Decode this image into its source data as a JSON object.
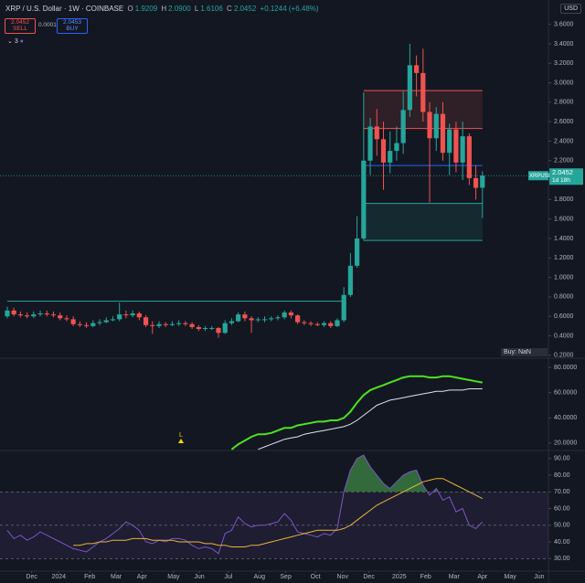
{
  "header": {
    "symbol": "XRP / U.S. Dollar · 1W · COINBASE",
    "ohlc": [
      "O",
      "1.9209",
      "H",
      "2.0900",
      "L",
      "1.6106",
      "C",
      "2.0452",
      "+0.1244 (+6.48%)"
    ],
    "sell_price": "2.0452",
    "sell_label": "SELL",
    "spread": "0.0001",
    "buy_price": "2.0453",
    "buy_label": "BUY",
    "indicator_count": "3",
    "currency": "USD",
    "ticker": "XRPUSD",
    "last_price": "2.0452",
    "countdown": "1d 18h",
    "strategy_note": "Buy: NaN"
  },
  "chart_data": [
    {
      "type": "candlestick",
      "up_color": "#26a69a",
      "down_color": "#ef5350",
      "x": [
        0,
        1,
        2,
        3,
        4,
        5,
        6,
        7,
        8,
        9,
        10,
        11,
        12,
        13,
        14,
        15,
        16,
        17,
        18,
        19,
        20,
        21,
        22,
        23,
        24,
        25,
        26,
        27,
        28,
        29,
        30,
        31,
        32,
        33,
        34,
        35,
        36,
        37,
        38,
        39,
        40,
        41,
        42,
        43,
        44,
        45,
        46,
        47,
        48,
        49,
        50,
        51,
        52,
        53,
        54,
        55,
        56,
        57,
        58,
        59,
        60,
        61,
        62,
        63,
        64,
        65,
        66,
        67,
        68,
        69,
        70,
        71,
        72
      ],
      "open": [
        0.6,
        0.66,
        0.62,
        0.61,
        0.6,
        0.62,
        0.63,
        0.62,
        0.61,
        0.58,
        0.57,
        0.52,
        0.51,
        0.5,
        0.53,
        0.54,
        0.56,
        0.57,
        0.62,
        0.61,
        0.63,
        0.59,
        0.51,
        0.5,
        0.52,
        0.51,
        0.52,
        0.53,
        0.52,
        0.49,
        0.47,
        0.48,
        0.48,
        0.43,
        0.53,
        0.55,
        0.62,
        0.58,
        0.56,
        0.57,
        0.57,
        0.58,
        0.59,
        0.64,
        0.61,
        0.54,
        0.53,
        0.52,
        0.51,
        0.53,
        0.5,
        0.56,
        0.82,
        1.12,
        1.4,
        2.2,
        2.55,
        2.42,
        2.18,
        2.3,
        2.38,
        2.72,
        3.18,
        3.1,
        2.7,
        2.43,
        2.68,
        2.28,
        2.52,
        2.18,
        2.45,
        2.02,
        1.9209
      ],
      "high": [
        0.7,
        0.69,
        0.65,
        0.64,
        0.65,
        0.66,
        0.66,
        0.65,
        0.64,
        0.61,
        0.6,
        0.55,
        0.54,
        0.56,
        0.57,
        0.59,
        0.6,
        0.74,
        0.66,
        0.66,
        0.65,
        0.61,
        0.55,
        0.55,
        0.54,
        0.55,
        0.56,
        0.55,
        0.54,
        0.51,
        0.5,
        0.5,
        0.49,
        0.56,
        0.58,
        0.64,
        0.65,
        0.6,
        0.59,
        0.6,
        0.6,
        0.61,
        0.66,
        0.66,
        0.62,
        0.56,
        0.55,
        0.54,
        0.55,
        0.55,
        0.58,
        0.9,
        1.25,
        1.63,
        2.9,
        2.64,
        2.73,
        2.6,
        2.5,
        2.55,
        2.91,
        3.4,
        3.28,
        3.35,
        2.8,
        2.75,
        2.8,
        2.58,
        2.6,
        2.6,
        2.48,
        2.15,
        2.09
      ],
      "low": [
        0.58,
        0.6,
        0.59,
        0.58,
        0.58,
        0.6,
        0.6,
        0.59,
        0.56,
        0.55,
        0.5,
        0.49,
        0.48,
        0.49,
        0.51,
        0.53,
        0.55,
        0.55,
        0.58,
        0.59,
        0.56,
        0.49,
        0.42,
        0.48,
        0.49,
        0.5,
        0.5,
        0.5,
        0.47,
        0.45,
        0.45,
        0.46,
        0.38,
        0.42,
        0.51,
        0.54,
        0.55,
        0.43,
        0.54,
        0.54,
        0.55,
        0.56,
        0.57,
        0.58,
        0.52,
        0.51,
        0.5,
        0.5,
        0.49,
        0.48,
        0.49,
        0.54,
        0.8,
        1.1,
        1.38,
        2.05,
        2.25,
        1.9,
        2.07,
        2.2,
        2.27,
        2.65,
        2.86,
        2.6,
        1.77,
        2.3,
        2.2,
        2.05,
        2.08,
        2.0,
        1.95,
        1.8,
        1.6106
      ],
      "close": [
        0.66,
        0.62,
        0.61,
        0.6,
        0.62,
        0.63,
        0.62,
        0.61,
        0.58,
        0.57,
        0.52,
        0.51,
        0.5,
        0.53,
        0.54,
        0.56,
        0.57,
        0.62,
        0.61,
        0.63,
        0.59,
        0.51,
        0.5,
        0.52,
        0.51,
        0.52,
        0.53,
        0.52,
        0.49,
        0.47,
        0.48,
        0.48,
        0.43,
        0.53,
        0.55,
        0.62,
        0.58,
        0.56,
        0.57,
        0.57,
        0.58,
        0.59,
        0.64,
        0.61,
        0.54,
        0.53,
        0.52,
        0.51,
        0.53,
        0.5,
        0.56,
        0.82,
        1.12,
        1.4,
        2.2,
        2.55,
        2.42,
        2.18,
        2.3,
        2.38,
        2.72,
        3.18,
        3.1,
        2.7,
        2.43,
        2.68,
        2.28,
        2.52,
        2.18,
        2.45,
        2.02,
        1.92,
        2.0452
      ],
      "zones": [
        {
          "x": [
            54,
            72
          ],
          "y": [
            2.53,
            2.92
          ],
          "color": "rgba(239,83,80,0.13)"
        },
        {
          "x": [
            54,
            72
          ],
          "y": [
            1.38,
            1.76
          ],
          "color": "rgba(38,166,154,0.13)"
        }
      ],
      "hlines": [
        {
          "value": 0.755,
          "x": [
            0,
            51
          ],
          "color": "#26a69a"
        },
        {
          "value": 2.92,
          "x": [
            54,
            72
          ],
          "color": "#ef5350"
        },
        {
          "value": 2.53,
          "x": [
            54,
            72
          ],
          "color": "#ef5350"
        },
        {
          "value": 2.15,
          "x": [
            54,
            72
          ],
          "color": "#2962ff"
        },
        {
          "value": 1.76,
          "x": [
            54,
            72
          ],
          "color": "#26a69a"
        },
        {
          "value": 1.38,
          "x": [
            54,
            72
          ],
          "color": "#26a69a"
        }
      ],
      "xlim": [
        -1.1,
        82
      ],
      "ylim": [
        0.17,
        3.85
      ],
      "grid": false,
      "yticks": [
        {
          "value": 3.6,
          "label": "3.6000"
        },
        {
          "value": 3.4,
          "label": "3.4000"
        },
        {
          "value": 3.2,
          "label": "3.2000"
        },
        {
          "value": 3.0,
          "label": "3.0000"
        },
        {
          "value": 2.8,
          "label": "2.8000"
        },
        {
          "value": 2.6,
          "label": "2.6000"
        },
        {
          "value": 2.4,
          "label": "2.4000"
        },
        {
          "value": 2.2,
          "label": "2.2000"
        },
        {
          "value": 2.0,
          "label": "2.0000"
        },
        {
          "value": 1.8,
          "label": "1.8000"
        },
        {
          "value": 1.6,
          "label": "1.6000"
        },
        {
          "value": 1.4,
          "label": "1.4000"
        },
        {
          "value": 1.2,
          "label": "1.2000"
        },
        {
          "value": 1.0,
          "label": "1.0000"
        },
        {
          "value": 0.8,
          "label": "0.8000"
        },
        {
          "value": 0.6,
          "label": "0.6000"
        },
        {
          "value": 0.4,
          "label": "0.4000"
        },
        {
          "value": 0.2,
          "label": "0.2000"
        }
      ]
    },
    {
      "type": "line",
      "annotation": "L",
      "x": [
        0,
        1,
        2,
        3,
        4,
        5,
        6,
        7,
        8,
        9,
        10,
        11,
        12,
        13,
        14,
        15,
        16,
        17,
        18,
        19,
        20,
        21,
        22,
        23,
        24,
        25,
        26,
        27,
        28,
        29,
        30,
        31,
        32,
        33,
        34,
        35,
        36,
        37,
        38,
        39,
        40,
        41,
        42,
        43,
        44,
        45,
        46,
        47,
        48,
        49,
        50,
        51,
        52,
        53,
        54,
        55,
        56,
        57,
        58,
        59,
        60,
        61,
        62,
        63,
        64,
        65,
        66,
        67,
        68,
        69,
        70,
        71,
        72
      ],
      "series": [
        {
          "color": "#4ce31e",
          "width": 2,
          "values": [
            null,
            null,
            null,
            null,
            null,
            null,
            null,
            null,
            null,
            null,
            null,
            null,
            null,
            null,
            null,
            null,
            null,
            null,
            null,
            null,
            null,
            null,
            null,
            null,
            null,
            null,
            null,
            null,
            null,
            null,
            null,
            null,
            null,
            null,
            15,
            19,
            22,
            25,
            27,
            27,
            28,
            30,
            32,
            32,
            34,
            35,
            36,
            37,
            37,
            38,
            38,
            40,
            45,
            52,
            58,
            62,
            64,
            66,
            68,
            70,
            72,
            73,
            73,
            73,
            72,
            72,
            73,
            73,
            72,
            71,
            70,
            69,
            68
          ]
        },
        {
          "color": "#e0e3eb",
          "width": 1,
          "values": [
            null,
            null,
            null,
            null,
            null,
            null,
            null,
            null,
            null,
            null,
            null,
            null,
            null,
            null,
            null,
            null,
            null,
            null,
            null,
            null,
            null,
            null,
            null,
            null,
            null,
            null,
            null,
            null,
            null,
            null,
            null,
            null,
            null,
            null,
            null,
            null,
            null,
            null,
            15,
            17,
            19,
            21,
            23,
            24,
            25,
            27,
            28,
            29,
            30,
            31,
            32,
            33,
            35,
            38,
            42,
            46,
            50,
            52,
            54,
            55,
            56,
            57,
            58,
            59,
            60,
            61,
            61,
            62,
            62,
            62,
            63,
            63,
            63
          ]
        }
      ],
      "xlim": [
        -1.1,
        82
      ],
      "ylim": [
        14.1,
        87.3
      ],
      "grid": false,
      "yticks": [
        {
          "value": 80,
          "label": "80.0000"
        },
        {
          "value": 60,
          "label": "60.0000"
        },
        {
          "value": 40,
          "label": "40.0000"
        },
        {
          "value": 20,
          "label": "20.0000"
        }
      ]
    },
    {
      "type": "rsi",
      "levels": [
        70,
        50,
        30
      ],
      "band": [
        30,
        70
      ],
      "band_color": "rgba(126,87,194,0.10)",
      "overbought_fill": "rgba(76,175,80,0.55)",
      "x": [
        0,
        1,
        2,
        3,
        4,
        5,
        6,
        7,
        8,
        9,
        10,
        11,
        12,
        13,
        14,
        15,
        16,
        17,
        18,
        19,
        20,
        21,
        22,
        23,
        24,
        25,
        26,
        27,
        28,
        29,
        30,
        31,
        32,
        33,
        34,
        35,
        36,
        37,
        38,
        39,
        40,
        41,
        42,
        43,
        44,
        45,
        46,
        47,
        48,
        49,
        50,
        51,
        52,
        53,
        54,
        55,
        56,
        57,
        58,
        59,
        60,
        61,
        62,
        63,
        64,
        65,
        66,
        67,
        68,
        69,
        70,
        71,
        72
      ],
      "series": [
        {
          "color": "#7e57c2",
          "width": 1,
          "values": [
            47,
            42,
            44,
            41,
            43,
            46,
            44,
            42,
            40,
            38,
            36,
            35,
            34,
            37,
            40,
            42,
            45,
            48,
            52,
            50,
            47,
            40,
            39,
            41,
            40,
            42,
            42,
            41,
            38,
            36,
            37,
            36,
            33,
            45,
            47,
            55,
            51,
            49,
            50,
            50,
            51,
            52,
            57,
            53,
            46,
            45,
            44,
            43,
            45,
            44,
            48,
            70,
            83,
            90,
            92,
            85,
            80,
            75,
            72,
            76,
            80,
            82,
            83,
            74,
            68,
            72,
            65,
            67,
            58,
            60,
            50,
            48,
            52
          ]
        },
        {
          "color": "#e8b53a",
          "width": 1,
          "values": [
            null,
            null,
            null,
            null,
            null,
            null,
            null,
            null,
            null,
            null,
            38,
            38,
            39,
            39,
            40,
            40,
            41,
            41,
            41,
            42,
            42,
            42,
            41,
            41,
            41,
            41,
            40,
            40,
            40,
            40,
            39,
            39,
            38,
            38,
            37,
            37,
            37,
            38,
            38,
            39,
            40,
            41,
            42,
            43,
            44,
            45,
            46,
            47,
            47,
            47,
            47,
            48,
            50,
            53,
            56,
            59,
            62,
            64,
            66,
            68,
            70,
            72,
            74,
            76,
            77,
            78,
            78,
            76,
            74,
            72,
            70,
            68,
            66
          ]
        }
      ],
      "xlim": [
        -1.1,
        82
      ],
      "ylim": [
        22.5,
        94.8
      ],
      "grid": false,
      "yticks": [
        {
          "value": 90,
          "label": "90.00"
        },
        {
          "value": 80,
          "label": "80.00"
        },
        {
          "value": 70,
          "label": "70.00"
        },
        {
          "value": 60,
          "label": "60.00"
        },
        {
          "value": 50,
          "label": "50.00"
        },
        {
          "value": 40,
          "label": "40.00"
        },
        {
          "value": 30,
          "label": "30.00"
        }
      ],
      "xticks": [
        {
          "value": 3.7,
          "label": "Dec"
        },
        {
          "value": 7.8,
          "label": "2024"
        },
        {
          "value": 12.5,
          "label": "Feb"
        },
        {
          "value": 16.5,
          "label": "Mar"
        },
        {
          "value": 20.4,
          "label": "Apr"
        },
        {
          "value": 25.2,
          "label": "May"
        },
        {
          "value": 29.1,
          "label": "Jun"
        },
        {
          "value": 33.5,
          "label": "Jul"
        },
        {
          "value": 38.2,
          "label": "Aug"
        },
        {
          "value": 42.2,
          "label": "Sep"
        },
        {
          "value": 46.7,
          "label": "Oct"
        },
        {
          "value": 50.8,
          "label": "Nov"
        },
        {
          "value": 54.8,
          "label": "Dec"
        },
        {
          "value": 59.4,
          "label": "2025"
        },
        {
          "value": 63.4,
          "label": "Feb"
        },
        {
          "value": 67.7,
          "label": "Mar"
        },
        {
          "value": 72,
          "label": "Apr"
        },
        {
          "value": 76.2,
          "label": "May"
        },
        {
          "value": 80.6,
          "label": "Jun"
        }
      ]
    }
  ]
}
